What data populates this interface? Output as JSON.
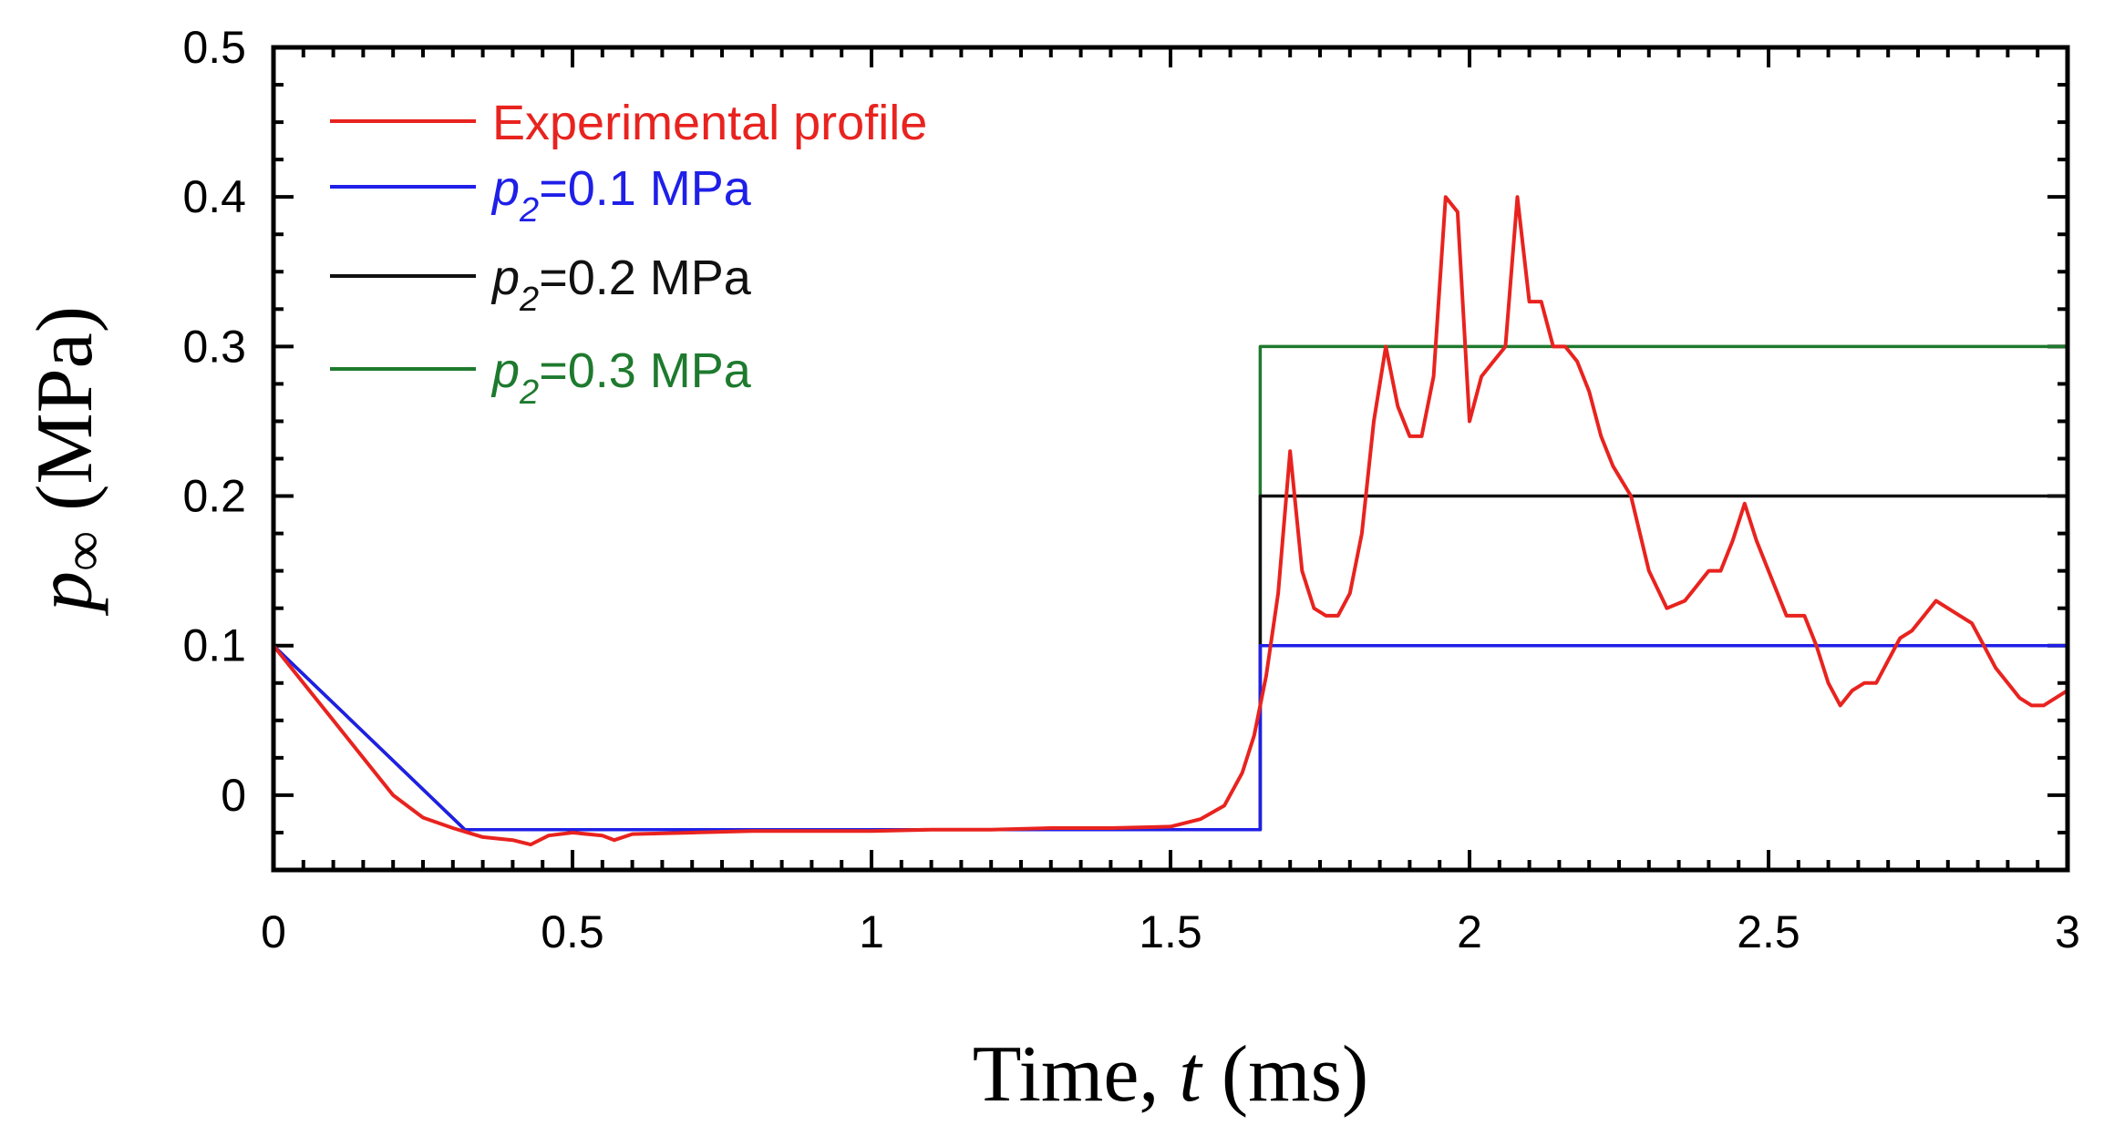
{
  "chart_data": {
    "type": "line",
    "title": "",
    "xlabel": {
      "prefix": "Time, ",
      "var": "t",
      "suffix": " (ms)"
    },
    "ylabel": {
      "var": "p",
      "sub": "∞",
      "suffix": " (MPa)"
    },
    "xlim": [
      0,
      3
    ],
    "ylim": [
      -0.05,
      0.5
    ],
    "x_ticks": [
      0,
      0.5,
      1,
      1.5,
      2,
      2.5,
      3
    ],
    "x_tick_labels": [
      "0",
      "0.5",
      "1",
      "1.5",
      "2",
      "2.5",
      "3"
    ],
    "y_ticks": [
      0,
      0.1,
      0.2,
      0.3,
      0.4,
      0.5
    ],
    "y_tick_labels": [
      "0",
      "0.1",
      "0.2",
      "0.3",
      "0.4",
      "0.5"
    ],
    "grid": false,
    "legend_position": "top-left",
    "series": [
      {
        "name": "Experimental profile",
        "legend_var": "",
        "legend_sub": "",
        "legend_text": "Experimental profile",
        "color": "#e8231f",
        "x": [
          0,
          0.05,
          0.1,
          0.15,
          0.2,
          0.25,
          0.3,
          0.35,
          0.4,
          0.43,
          0.46,
          0.5,
          0.55,
          0.57,
          0.6,
          0.7,
          0.8,
          0.9,
          1.0,
          1.1,
          1.2,
          1.3,
          1.4,
          1.5,
          1.55,
          1.59,
          1.62,
          1.64,
          1.66,
          1.68,
          1.7,
          1.72,
          1.74,
          1.76,
          1.78,
          1.8,
          1.82,
          1.84,
          1.86,
          1.88,
          1.9,
          1.92,
          1.94,
          1.96,
          1.98,
          2.0,
          2.02,
          2.04,
          2.06,
          2.08,
          2.1,
          2.12,
          2.14,
          2.16,
          2.18,
          2.2,
          2.22,
          2.24,
          2.27,
          2.3,
          2.33,
          2.36,
          2.38,
          2.4,
          2.42,
          2.44,
          2.46,
          2.48,
          2.5,
          2.53,
          2.56,
          2.58,
          2.6,
          2.62,
          2.64,
          2.66,
          2.68,
          2.7,
          2.72,
          2.74,
          2.76,
          2.78,
          2.8,
          2.82,
          2.84,
          2.86,
          2.88,
          2.9,
          2.92,
          2.94,
          2.96,
          2.98,
          3.0
        ],
        "y": [
          0.1,
          0.075,
          0.05,
          0.025,
          0.0,
          -0.015,
          -0.022,
          -0.028,
          -0.03,
          -0.033,
          -0.027,
          -0.025,
          -0.027,
          -0.03,
          -0.026,
          -0.025,
          -0.024,
          -0.024,
          -0.024,
          -0.023,
          -0.023,
          -0.022,
          -0.022,
          -0.021,
          -0.016,
          -0.007,
          0.015,
          0.04,
          0.08,
          0.135,
          0.23,
          0.15,
          0.125,
          0.12,
          0.12,
          0.135,
          0.175,
          0.25,
          0.3,
          0.26,
          0.24,
          0.24,
          0.28,
          0.4,
          0.39,
          0.25,
          0.28,
          0.29,
          0.3,
          0.4,
          0.33,
          0.33,
          0.3,
          0.3,
          0.29,
          0.27,
          0.24,
          0.22,
          0.2,
          0.15,
          0.125,
          0.13,
          0.14,
          0.15,
          0.15,
          0.17,
          0.195,
          0.17,
          0.15,
          0.12,
          0.12,
          0.1,
          0.075,
          0.06,
          0.07,
          0.075,
          0.075,
          0.09,
          0.105,
          0.11,
          0.12,
          0.13,
          0.125,
          0.12,
          0.115,
          0.1,
          0.085,
          0.075,
          0.065,
          0.06,
          0.06,
          0.065,
          0.07
        ]
      },
      {
        "name": "p2=0.1 MPa",
        "legend_var": "p",
        "legend_sub": "2",
        "legend_text": "=0.1 MPa",
        "color": "#1f1fe8",
        "x": [
          0,
          0.32,
          1.65,
          1.65,
          3.0
        ],
        "y": [
          0.1,
          -0.023,
          -0.023,
          0.1,
          0.1
        ]
      },
      {
        "name": "p2=0.2 MPa",
        "legend_var": "p",
        "legend_sub": "2",
        "legend_text": "=0.2 MPa",
        "color": "#111111",
        "x": [
          0,
          0.32,
          1.65,
          1.65,
          3.0
        ],
        "y": [
          0.1,
          -0.023,
          -0.023,
          0.2,
          0.2
        ]
      },
      {
        "name": "p2=0.3 MPa",
        "legend_var": "p",
        "legend_sub": "2",
        "legend_text": "=0.3 MPa",
        "color": "#1e7a2e",
        "x": [
          0,
          0.32,
          1.65,
          1.65,
          3.0
        ],
        "y": [
          0.1,
          -0.023,
          -0.023,
          0.3,
          0.3
        ]
      }
    ]
  }
}
